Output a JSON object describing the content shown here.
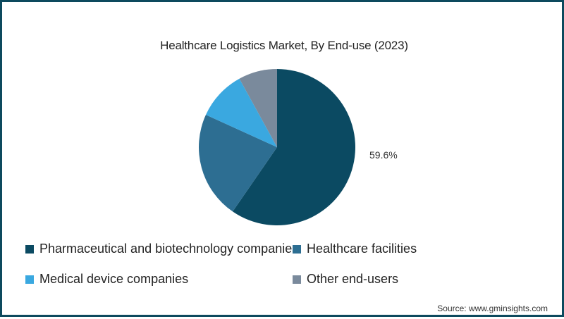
{
  "chart_data": {
    "type": "pie",
    "title": "Healthcare Logistics Market, By End-use (2023)",
    "categories": [
      "Pharmaceutical and biotechnology companies",
      "Healthcare facilities",
      "Medical device companies",
      "Other end-users"
    ],
    "values": [
      59.6,
      22.2,
      10.2,
      8.0
    ],
    "colors": [
      "#0b4a62",
      "#2d6e92",
      "#3aa8e0",
      "#7a8a9c"
    ],
    "data_labels": [
      "59.6%",
      "",
      "",
      ""
    ],
    "start_angle": "12 o'clock, clockwise",
    "legend_position": "bottom",
    "source": "Source: www.gminsights.com"
  },
  "title": "Healthcare Logistics Market, By End-use (2023)",
  "label_main": "59.6%",
  "legend": [
    {
      "label": "Pharmaceutical and biotechnology companies",
      "color": "#0b4a62"
    },
    {
      "label": "Healthcare facilities",
      "color": "#2d6e92"
    },
    {
      "label": "Medical device companies",
      "color": "#3aa8e0"
    },
    {
      "label": "Other end-users",
      "color": "#7a8a9c"
    }
  ],
  "source": "Source: www.gminsights.com",
  "frame_color": "#0d4a5e"
}
